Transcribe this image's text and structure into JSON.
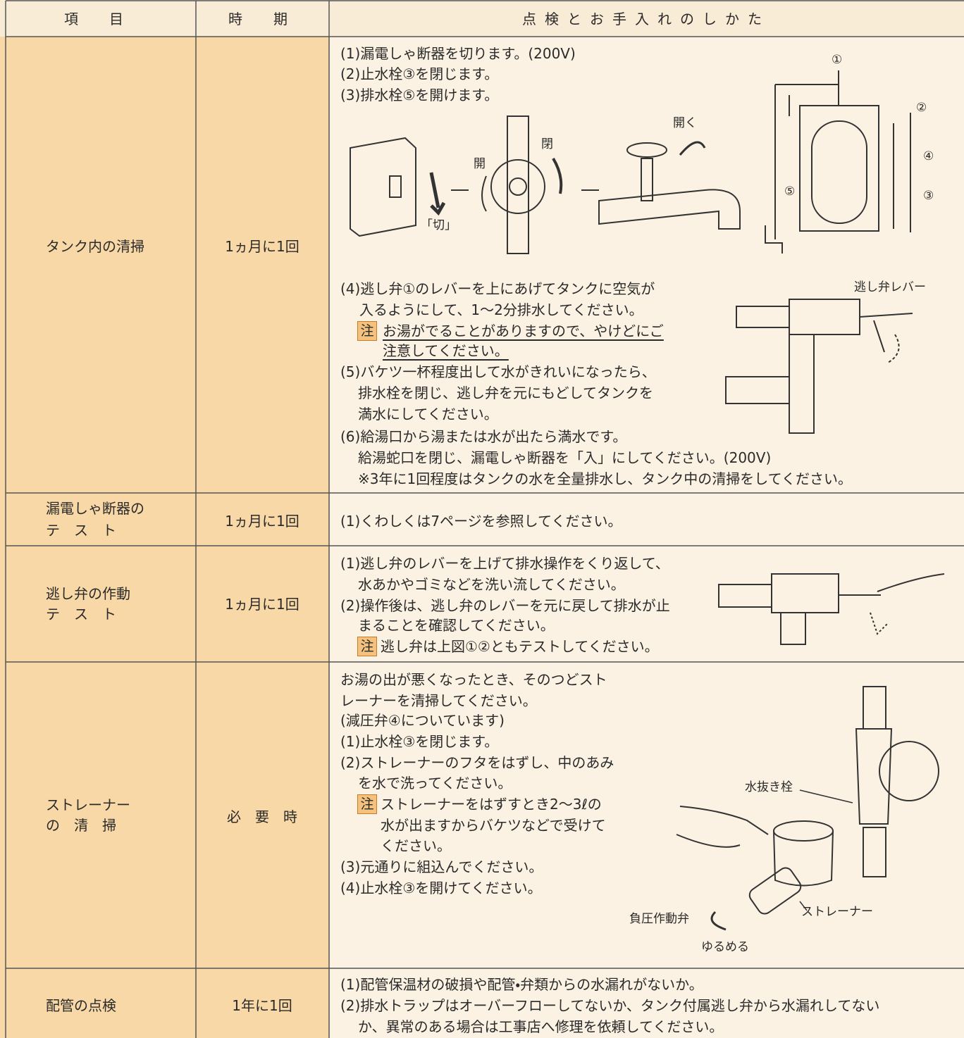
{
  "table": {
    "header": [
      "項　目",
      "時　期",
      "点検とお手入れのしかた"
    ],
    "rows": [
      {
        "item": [
          "タンク内の清掃"
        ],
        "period": "1ヵ月に1回",
        "lines": [
          "(1)漏電しゃ断器を切ります。(200V)",
          "(2)止水栓③を閉じます。",
          "(3)排水栓⑤を開けます。",
          "(4)逃し弁①のレバーを上にあげてタンクに空気が",
          "入るようにして、1〜2分排水してください。",
          "お湯がでることがありますので、やけどにご",
          "注意してください。",
          "(5)バケツ一杯程度出して水がきれいになったら、",
          "排水栓を閉じ、逃し弁を元にもどしてタンクを",
          "満水にしてください。",
          "(6)給湯口から湯または水が出たら満水です。",
          "給湯蛇口を閉じ、漏電しゃ断器を「入」にしてください。(200V)",
          "※3年に1回程度はタンクの水を全量排水し、タンク中の清掃をしてください。"
        ],
        "note": "注",
        "labels": [
          "①",
          "②",
          "④",
          "③",
          "⑤",
          "開く",
          "閉",
          "開",
          "「切」",
          "逃し弁レバー"
        ]
      },
      {
        "item": [
          "漏電しゃ断器の",
          "テ　ス　ト"
        ],
        "period": "1ヵ月に1回",
        "lines": [
          "(1)くわしくは7ページを参照してください。"
        ]
      },
      {
        "item": [
          "逃し弁の作動",
          "テ　ス　ト"
        ],
        "period": "1ヵ月に1回",
        "lines": [
          "(1)逃し弁のレバーを上げて排水操作をくり返して、",
          "水あかやゴミなどを洗い流してください。",
          "(2)操作後は、逃し弁のレバーを元に戻して排水が止",
          "まることを確認してください。",
          "逃し弁は上図①②ともテストしてください。"
        ],
        "note": "注"
      },
      {
        "item": [
          "ストレーナー",
          "の　清　掃"
        ],
        "period": "必　要　時",
        "lines": [
          "お湯の出が悪くなったとき、そのつどスト",
          "レーナーを清掃してください。",
          "(減圧弁④についています)",
          "(1)止水栓③を閉じます。",
          "(2)ストレーナーのフタをはずし、中のあみ",
          "を水で洗ってください。",
          "ストレーナーをはずすとき2〜3ℓの",
          "水が出ますからバケツなどで受けて",
          "ください。",
          "(3)元通りに組込んでください。",
          "(4)止水栓③を開けてください。"
        ],
        "note": "注",
        "labels": [
          "水抜き栓",
          "ストレーナー",
          "負圧作動弁",
          "ゆるめる"
        ]
      },
      {
        "item": [
          "配管の点検"
        ],
        "period": "1年に1回",
        "lines": [
          "(1)配管保温材の破損や配管・弁類からの水漏れがないか。",
          "(2)排水トラップはオーバーフローしてないか、タンク付属逃し弁から水漏れしてない",
          "か、異常のある場合は工事店へ修理を依頼してください。"
        ]
      }
    ]
  }
}
